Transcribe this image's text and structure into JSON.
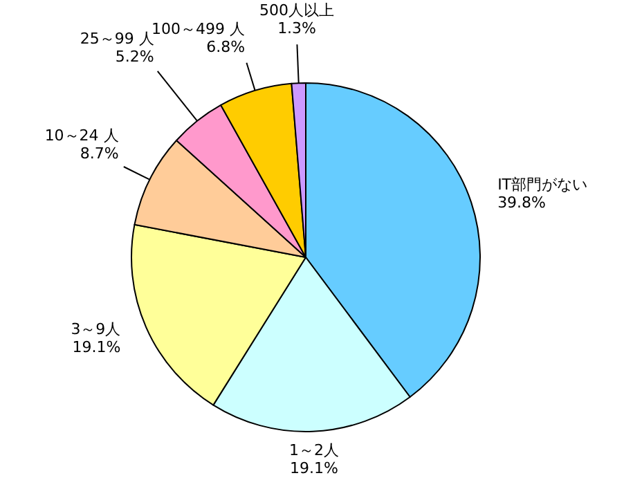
{
  "chart_data": {
    "type": "pie",
    "categories": [
      "IT部門がない",
      "1～2人",
      "3～9人",
      "10～24 人",
      "25～99 人",
      "100～499 人",
      "500人以上"
    ],
    "values": [
      39.8,
      19.1,
      19.1,
      8.7,
      5.2,
      6.8,
      1.3
    ],
    "value_labels": [
      "39.8%",
      "19.1%",
      "19.1%",
      "8.7%",
      "5.2%",
      "6.8%",
      "1.3%"
    ],
    "colors": [
      "#66ccff",
      "#ccffff",
      "#ffff99",
      "#ffcc99",
      "#ff99cc",
      "#ffcc00",
      "#cc99ff"
    ],
    "legend": false
  }
}
